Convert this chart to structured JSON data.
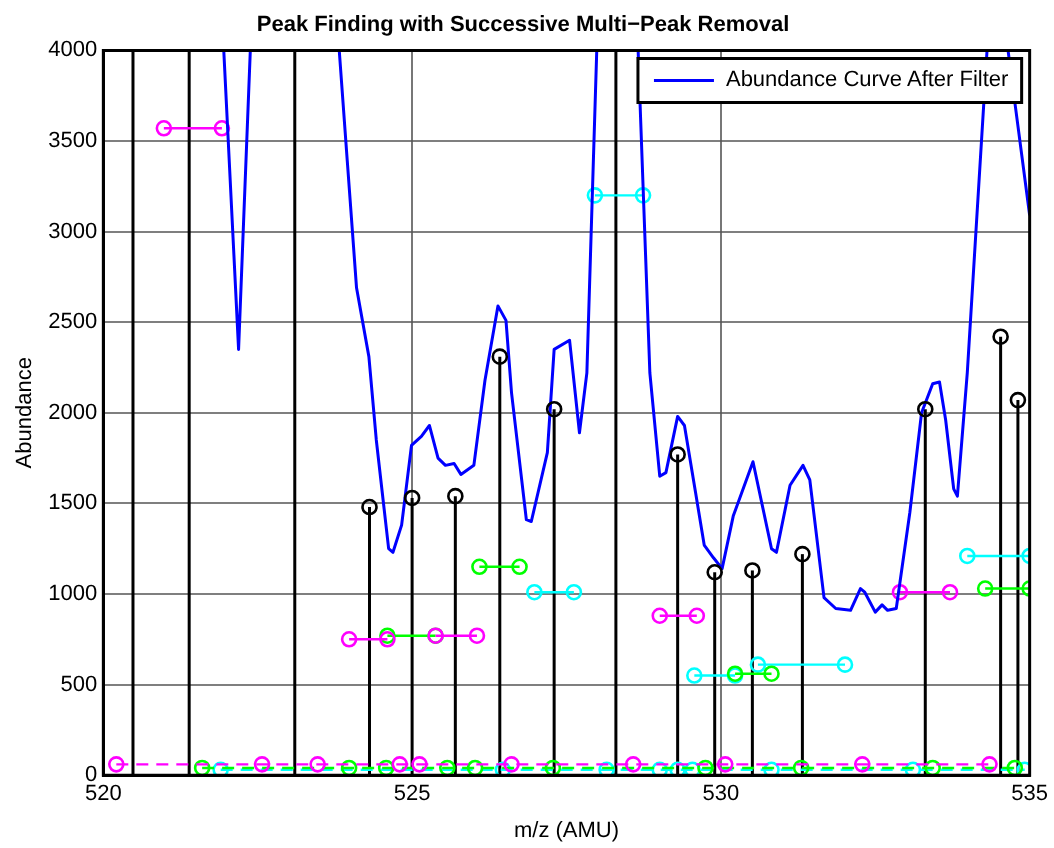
{
  "chart_data": {
    "type": "line",
    "title": "Peak Finding with Successive Multi−Peak Removal",
    "xlabel": "m/z (AMU)",
    "ylabel": "Abundance",
    "xlim": [
      520,
      535
    ],
    "xticks": [
      520,
      525,
      530,
      535
    ],
    "ylim": [
      0,
      4000
    ],
    "yticks": [
      0,
      500,
      1000,
      1500,
      2000,
      2500,
      3000,
      3500,
      4000
    ],
    "grid": true,
    "legend": "top right",
    "ref_lines": [
      {
        "axis": "x",
        "value": 520.48,
        "color": "#000000"
      },
      {
        "axis": "x",
        "value": 521.39,
        "color": "#000000"
      },
      {
        "axis": "x",
        "value": 523.1,
        "color": "#000000"
      },
      {
        "axis": "x",
        "value": 528.3,
        "color": "#000000"
      }
    ],
    "series": [
      {
        "name": "Abundance Curve After Filter",
        "color": "#0000ff",
        "marker": "none",
        "x": [
          521.95,
          522.19,
          522.38,
          null,
          523.82,
          523.95,
          524.1,
          524.3,
          524.42,
          524.62,
          524.69,
          524.83,
          524.99,
          525.15,
          525.28,
          525.42,
          525.54,
          525.68,
          525.79,
          526.0,
          526.18,
          526.39,
          526.52,
          526.61,
          526.85,
          526.93,
          527.19,
          527.3,
          527.55,
          527.71,
          527.83,
          527.99,
          null,
          528.66,
          528.85,
          529.01,
          529.11,
          529.3,
          529.41,
          529.59,
          529.73,
          529.88,
          530.02,
          530.2,
          530.52,
          530.82,
          530.9,
          531.12,
          531.33,
          531.44,
          531.67,
          531.86,
          532.1,
          532.26,
          532.33,
          532.5,
          532.61,
          532.7,
          532.84,
          533.06,
          533.25,
          533.43,
          533.54,
          533.64,
          533.77,
          533.83,
          533.99,
          534.31,
          null,
          534.65,
          535.0
        ],
        "values": [
          4000,
          2350,
          4000,
          null,
          4000,
          3390,
          2690,
          2310,
          1850,
          1250,
          1230,
          1380,
          1820,
          1870,
          1930,
          1750,
          1710,
          1720,
          1660,
          1710,
          2180,
          2590,
          2510,
          2110,
          1410,
          1400,
          1780,
          2350,
          2400,
          1890,
          2220,
          4000,
          null,
          4000,
          2220,
          1650,
          1670,
          1980,
          1930,
          1560,
          1270,
          1200,
          1140,
          1430,
          1730,
          1250,
          1230,
          1600,
          1710,
          1630,
          980,
          920,
          910,
          1030,
          1010,
          900,
          940,
          910,
          920,
          1450,
          2000,
          2160,
          2170,
          1960,
          1580,
          1540,
          2220,
          4000,
          null,
          4000,
          3090
        ]
      },
      {
        "type": "lollipop",
        "color": "#000000",
        "marker": "circle",
        "x": [
          524.31,
          525.0,
          525.7,
          526.42,
          527.3,
          529.3,
          529.9,
          530.51,
          531.32,
          533.31,
          534.53,
          534.81
        ],
        "values": [
          1480,
          1530,
          1540,
          2310,
          2020,
          1770,
          1120,
          1130,
          1220,
          2020,
          2420,
          2070
        ]
      },
      {
        "type": "line",
        "color": "#ff00ff",
        "marker": "circle",
        "line_style": "solid",
        "x": [
          520.98,
          521.92,
          null,
          523.98,
          524.6,
          null,
          525.38,
          526.05,
          null,
          529.01,
          529.61,
          null,
          532.9,
          533.71
        ],
        "values": [
          3570,
          3570,
          null,
          750,
          750,
          null,
          770,
          770,
          null,
          880,
          880,
          null,
          1010,
          1010
        ]
      },
      {
        "type": "line",
        "color": "#00ff00",
        "marker": "circle",
        "line_style": "solid",
        "x": [
          524.6,
          525.38,
          null,
          526.09,
          526.74,
          null,
          530.23,
          530.82,
          null,
          534.28,
          535.0
        ],
        "values": [
          770,
          770,
          null,
          1150,
          1150,
          null,
          560,
          560,
          null,
          1030,
          1030
        ]
      },
      {
        "type": "line",
        "color": "#00ffff",
        "marker": "circle",
        "line_style": "solid",
        "x": [
          526.98,
          527.62,
          null,
          527.96,
          528.74,
          null,
          529.57,
          530.23,
          null,
          530.6,
          532.01,
          null,
          533.99,
          535.0
        ],
        "values": [
          1010,
          1010,
          null,
          3200,
          3200,
          null,
          550,
          550,
          null,
          610,
          610,
          null,
          1210,
          1210
        ]
      },
      {
        "type": "line",
        "color": "#ff00ff",
        "marker": "circle",
        "line_style": "dashed",
        "x": [
          520.21,
          522.57,
          523.47,
          524.8,
          525.12,
          526.61,
          528.58,
          530.07,
          532.29,
          534.35
        ],
        "values": [
          60,
          60,
          60,
          60,
          60,
          60,
          60,
          60,
          60,
          60
        ]
      },
      {
        "type": "line",
        "color": "#00ff00",
        "marker": "circle",
        "line_style": "dashed",
        "x": [
          521.6,
          523.98,
          524.58,
          525.57,
          526.02,
          527.28,
          529.75,
          531.3,
          533.43,
          534.76
        ],
        "values": [
          40,
          40,
          40,
          40,
          40,
          40,
          40,
          40,
          40,
          40
        ]
      },
      {
        "type": "line",
        "color": "#00ffff",
        "marker": "circle",
        "line_style": "dashed",
        "x": [
          521.9,
          526.47,
          528.15,
          529.01,
          529.3,
          529.54,
          530.82,
          533.11,
          534.92
        ],
        "values": [
          30,
          30,
          30,
          30,
          30,
          30,
          30,
          30,
          30
        ]
      }
    ]
  }
}
